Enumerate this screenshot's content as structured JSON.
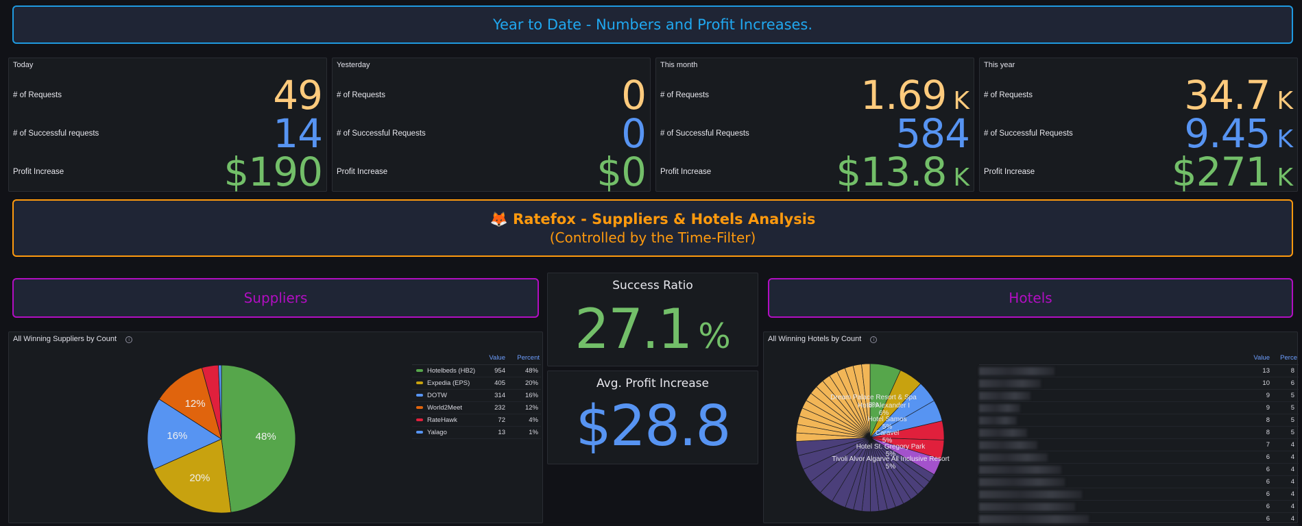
{
  "header_banner": {
    "text": "Year to Date - Numbers and Profit Increases."
  },
  "stat_panels": [
    {
      "title": "Today",
      "rows": [
        {
          "label": "# of Requests",
          "value": "49",
          "unit": ""
        },
        {
          "label": "# of Successful requests",
          "value": "14",
          "unit": ""
        },
        {
          "label": "Profit Increase",
          "value": "$190",
          "unit": ""
        }
      ]
    },
    {
      "title": "Yesterday",
      "rows": [
        {
          "label": "# of Requests",
          "value": "0",
          "unit": ""
        },
        {
          "label": "# of Successful Requests",
          "value": "0",
          "unit": ""
        },
        {
          "label": "Profit Increase",
          "value": "$0",
          "unit": ""
        }
      ]
    },
    {
      "title": "This month",
      "rows": [
        {
          "label": "# of Requests",
          "value": "1.69",
          "unit": "K"
        },
        {
          "label": "# of Successful Requests",
          "value": "584",
          "unit": ""
        },
        {
          "label": "Profit Increase",
          "value": "$13.8",
          "unit": "K"
        }
      ]
    },
    {
      "title": "This year",
      "rows": [
        {
          "label": "# of Requests",
          "value": "34.7",
          "unit": "K"
        },
        {
          "label": "# of Successful Requests",
          "value": "9.45",
          "unit": "K"
        },
        {
          "label": "Profit Increase",
          "value": "$271",
          "unit": "K"
        }
      ]
    }
  ],
  "ratefox_banner": {
    "emoji": "🦊",
    "title": "Ratefox - Suppliers & Hotels Analysis",
    "subtitle": "(Controlled by the Time-Filter)"
  },
  "suppliers_banner": {
    "text": "Suppliers"
  },
  "hotels_banner": {
    "text": "Hotels"
  },
  "success_ratio": {
    "title": "Success Ratio",
    "value": "27.1",
    "unit": "%"
  },
  "avg_profit": {
    "title": "Avg. Profit Increase",
    "value": "$28.8"
  },
  "suppliers_panel": {
    "title": "All Winning Suppliers by Count",
    "info_icon": "info-circle-icon",
    "legend_headers": {
      "value": "Value",
      "percent": "Percent"
    }
  },
  "hotels_panel": {
    "title": "All Winning Hotels by Count",
    "info_icon": "info-circle-icon",
    "legend_headers": {
      "value": "Value",
      "percent": "Perce"
    },
    "legend_values": [
      {
        "value": "13",
        "percent": "8"
      },
      {
        "value": "10",
        "percent": "6"
      },
      {
        "value": "9",
        "percent": "5"
      },
      {
        "value": "9",
        "percent": "5"
      },
      {
        "value": "8",
        "percent": "5"
      },
      {
        "value": "8",
        "percent": "5"
      },
      {
        "value": "7",
        "percent": "4"
      },
      {
        "value": "6",
        "percent": "4"
      },
      {
        "value": "6",
        "percent": "4"
      },
      {
        "value": "6",
        "percent": "4"
      },
      {
        "value": "6",
        "percent": "4"
      },
      {
        "value": "6",
        "percent": "4"
      },
      {
        "value": "6",
        "percent": "4"
      }
    ]
  },
  "colors": {
    "requests": "#ffcb7d",
    "successful": "#5794f2",
    "profit": "#73bf69",
    "header_border": "#1f9ae0",
    "ratefox": "#ff9a0e",
    "section": "#b20ec2"
  },
  "chart_data": [
    {
      "type": "pie",
      "title": "All Winning Suppliers by Count",
      "categories": [
        "Hotelbeds (HB2)",
        "Expedia (EPS)",
        "DOTW",
        "World2Meet",
        "RateHawk",
        "Yalago"
      ],
      "values": [
        954,
        405,
        314,
        232,
        72,
        13
      ],
      "percent_labels": [
        "48%",
        "20%",
        "16%",
        "12%",
        "4%",
        "1%"
      ],
      "colors": [
        "#56a64b",
        "#c8a20f",
        "#5794f2",
        "#e0640d",
        "#e0203c",
        "#5794f2"
      ],
      "legend": "right"
    },
    {
      "type": "pie",
      "title": "All Winning Hotels by Count",
      "values": [
        13,
        10,
        9,
        9,
        8,
        8,
        7,
        6,
        6,
        6,
        6,
        6,
        6
      ],
      "slice_labels": [
        {
          "name": "Dream Palace Resort & Spa",
          "pct": "8%"
        },
        {
          "name": "Hotel Alexander I",
          "pct": "6%"
        },
        {
          "name": "Hotel Samos",
          "pct": "5%"
        },
        {
          "name": "Caravel",
          "pct": "5%"
        },
        {
          "name": "Hotel St. Gregory Park",
          "pct": "5%"
        },
        {
          "name": "Tivoli Alvor Algarve All Inclusive Resort",
          "pct": "5%"
        }
      ],
      "colors": [
        "#56a64b",
        "#c8a20f",
        "#5794f2",
        "#5794f2",
        "#e0203c",
        "#e0203c",
        "#a352cc"
      ],
      "legend": "right"
    }
  ]
}
